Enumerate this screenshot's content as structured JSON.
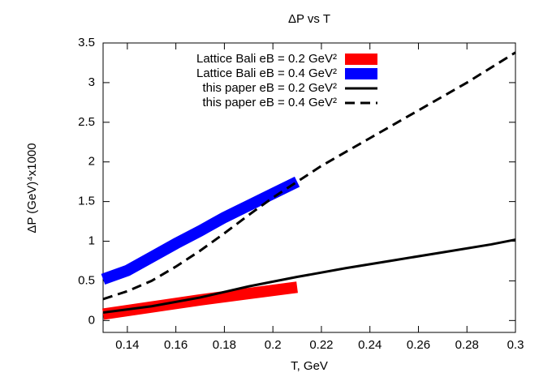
{
  "chart_data": {
    "type": "line",
    "title": "ΔP vs T",
    "xlabel": "T, GeV",
    "ylabel": "ΔP (GeV)⁴x1000",
    "xlim": [
      0.13,
      0.3
    ],
    "xticks": [
      0.14,
      0.16,
      0.18,
      0.2,
      0.22,
      0.24,
      0.26,
      0.28,
      0.3
    ],
    "ylim": [
      -0.15,
      3.5
    ],
    "yticks": [
      0,
      0.5,
      1,
      1.5,
      2,
      2.5,
      3,
      3.5
    ],
    "legend": "top-right",
    "series": [
      {
        "name": "Lattice Bali eB = 0.2 GeV²",
        "color": "#ff0000",
        "style": "band",
        "x": [
          0.13,
          0.15,
          0.17,
          0.19,
          0.21
        ],
        "values": [
          0.08,
          0.17,
          0.26,
          0.34,
          0.42
        ]
      },
      {
        "name": "Lattice Bali eB = 0.4 GeV²",
        "color": "#0000ff",
        "style": "band",
        "x": [
          0.13,
          0.14,
          0.15,
          0.16,
          0.17,
          0.18,
          0.19,
          0.2,
          0.21
        ],
        "values": [
          0.52,
          0.63,
          0.8,
          0.97,
          1.13,
          1.3,
          1.45,
          1.6,
          1.75
        ]
      },
      {
        "name": "this paper eB = 0.2 GeV²",
        "color": "#000000",
        "style": "solid",
        "x": [
          0.13,
          0.15,
          0.17,
          0.19,
          0.21,
          0.23,
          0.25,
          0.27,
          0.29,
          0.3
        ],
        "values": [
          0.1,
          0.18,
          0.29,
          0.43,
          0.55,
          0.66,
          0.76,
          0.86,
          0.96,
          1.02
        ]
      },
      {
        "name": "this paper eB = 0.4 GeV²",
        "color": "#000000",
        "style": "dashed",
        "x": [
          0.13,
          0.14,
          0.15,
          0.16,
          0.17,
          0.18,
          0.19,
          0.2,
          0.21,
          0.22,
          0.24,
          0.26,
          0.28,
          0.3
        ],
        "values": [
          0.27,
          0.37,
          0.5,
          0.68,
          0.88,
          1.1,
          1.33,
          1.55,
          1.75,
          1.95,
          2.3,
          2.65,
          3.0,
          3.38
        ]
      }
    ]
  }
}
